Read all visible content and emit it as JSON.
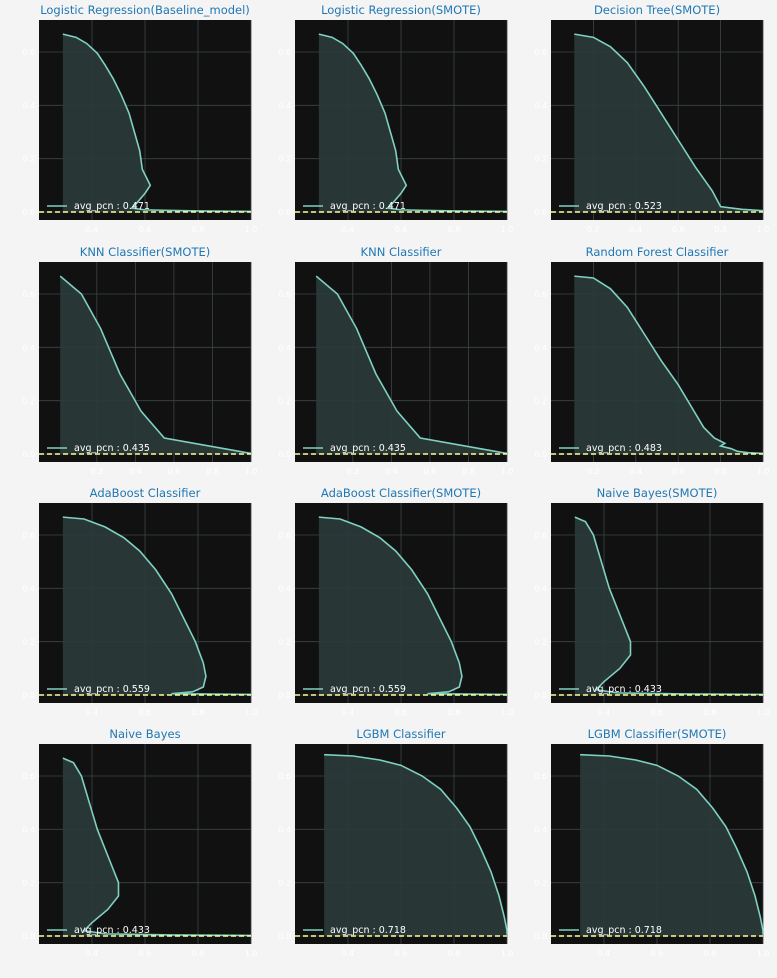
{
  "colors": {
    "page_bg": "#f4f4f4",
    "plot_bg": "#111111",
    "grid": "#3d4444",
    "curve": "#7fd1c1",
    "fill": "#2a3a39",
    "baseline": "#ffff99",
    "title": "#1f77b4",
    "tick": "#ffffff"
  },
  "chart_data": [
    {
      "type": "area",
      "title": "Logistic Regression(Baseline_model)",
      "xlabel": "",
      "ylabel": "",
      "xlim": [
        0.2,
        1.0
      ],
      "ylim": [
        -0.03,
        0.72
      ],
      "xticks": [
        "0.4",
        "0.6",
        "0.8",
        "1.0"
      ],
      "yticks": [
        "0.0",
        "0.2",
        "0.4",
        "0.6"
      ],
      "grid": true,
      "legend_position": "lower-left",
      "legend_label": "avg_pcn : 0.471",
      "baseline": 0.0,
      "curve": [
        [
          0.29,
          0.667
        ],
        [
          0.34,
          0.655
        ],
        [
          0.38,
          0.632
        ],
        [
          0.42,
          0.595
        ],
        [
          0.45,
          0.55
        ],
        [
          0.48,
          0.5
        ],
        [
          0.51,
          0.44
        ],
        [
          0.54,
          0.37
        ],
        [
          0.56,
          0.3
        ],
        [
          0.58,
          0.23
        ],
        [
          0.59,
          0.16
        ],
        [
          0.62,
          0.1
        ],
        [
          0.6,
          0.07
        ],
        [
          0.57,
          0.035
        ],
        [
          0.55,
          0.015
        ],
        [
          0.6,
          0.008
        ],
        [
          0.8,
          0.004
        ],
        [
          1.0,
          0.002
        ]
      ]
    },
    {
      "type": "area",
      "title": "Logistic Regression(SMOTE)",
      "xlabel": "",
      "ylabel": "",
      "xlim": [
        0.2,
        1.0
      ],
      "ylim": [
        -0.03,
        0.72
      ],
      "xticks": [
        "0.4",
        "0.6",
        "0.8",
        "1.0"
      ],
      "yticks": [
        "0.0",
        "0.2",
        "0.4",
        "0.6"
      ],
      "grid": true,
      "legend_position": "lower-left",
      "legend_label": "avg_pcn : 0.471",
      "baseline": 0.0,
      "curve": [
        [
          0.29,
          0.667
        ],
        [
          0.34,
          0.655
        ],
        [
          0.38,
          0.632
        ],
        [
          0.42,
          0.595
        ],
        [
          0.45,
          0.55
        ],
        [
          0.48,
          0.5
        ],
        [
          0.51,
          0.44
        ],
        [
          0.54,
          0.37
        ],
        [
          0.56,
          0.3
        ],
        [
          0.58,
          0.23
        ],
        [
          0.59,
          0.16
        ],
        [
          0.62,
          0.1
        ],
        [
          0.6,
          0.07
        ],
        [
          0.57,
          0.035
        ],
        [
          0.55,
          0.015
        ],
        [
          0.6,
          0.008
        ],
        [
          0.8,
          0.004
        ],
        [
          1.0,
          0.002
        ]
      ]
    },
    {
      "type": "area",
      "title": "Decision Tree(SMOTE)",
      "xlabel": "",
      "ylabel": "",
      "xlim": [
        0.0,
        1.0
      ],
      "ylim": [
        -0.03,
        0.72
      ],
      "xticks": [
        "0.2",
        "0.4",
        "0.6",
        "0.8",
        "1.0"
      ],
      "yticks": [
        "0.0",
        "0.2",
        "0.4",
        "0.6"
      ],
      "grid": true,
      "legend_position": "lower-left",
      "legend_label": "avg_pcn : 0.523",
      "baseline": 0.0,
      "curve": [
        [
          0.11,
          0.667
        ],
        [
          0.2,
          0.655
        ],
        [
          0.28,
          0.62
        ],
        [
          0.36,
          0.56
        ],
        [
          0.44,
          0.47
        ],
        [
          0.52,
          0.37
        ],
        [
          0.6,
          0.27
        ],
        [
          0.68,
          0.17
        ],
        [
          0.76,
          0.08
        ],
        [
          0.8,
          0.02
        ],
        [
          0.9,
          0.01
        ],
        [
          1.0,
          0.005
        ]
      ]
    },
    {
      "type": "area",
      "title": "KNN Classifier(SMOTE)",
      "xlabel": "",
      "ylabel": "",
      "xlim": [
        -0.1,
        1.0
      ],
      "ylim": [
        -0.03,
        0.72
      ],
      "xticks": [
        "0.2",
        "0.4",
        "0.6",
        "0.8",
        "1.0"
      ],
      "yticks": [
        "0.0",
        "0.2",
        "0.4",
        "0.6"
      ],
      "grid": true,
      "legend_position": "lower-left",
      "legend_label": "avg_pcn : 0.435",
      "baseline": 0.0,
      "curve": [
        [
          0.01,
          0.667
        ],
        [
          0.12,
          0.6
        ],
        [
          0.22,
          0.47
        ],
        [
          0.32,
          0.3
        ],
        [
          0.43,
          0.16
        ],
        [
          0.55,
          0.06
        ],
        [
          1.0,
          0.002
        ]
      ]
    },
    {
      "type": "area",
      "title": "KNN Classifier",
      "xlabel": "",
      "ylabel": "",
      "xlim": [
        -0.1,
        1.0
      ],
      "ylim": [
        -0.03,
        0.72
      ],
      "xticks": [
        "0.2",
        "0.4",
        "0.6",
        "0.8",
        "1.0"
      ],
      "yticks": [
        "0.0",
        "0.2",
        "0.4",
        "0.6"
      ],
      "grid": true,
      "legend_position": "lower-left",
      "legend_label": "avg_pcn : 0.435",
      "baseline": 0.0,
      "curve": [
        [
          0.01,
          0.667
        ],
        [
          0.12,
          0.6
        ],
        [
          0.22,
          0.47
        ],
        [
          0.32,
          0.3
        ],
        [
          0.43,
          0.16
        ],
        [
          0.55,
          0.06
        ],
        [
          1.0,
          0.002
        ]
      ]
    },
    {
      "type": "area",
      "title": "Random Forest Classifier",
      "xlabel": "",
      "ylabel": "",
      "xlim": [
        0.0,
        1.0
      ],
      "ylim": [
        -0.03,
        0.72
      ],
      "xticks": [
        "0.2",
        "0.4",
        "0.6",
        "0.8",
        "1.0"
      ],
      "yticks": [
        "0.0",
        "0.2",
        "0.4",
        "0.6"
      ],
      "grid": true,
      "legend_position": "lower-left",
      "legend_label": "avg_pcn : 0.483",
      "baseline": 0.0,
      "curve": [
        [
          0.11,
          0.667
        ],
        [
          0.2,
          0.66
        ],
        [
          0.28,
          0.62
        ],
        [
          0.36,
          0.55
        ],
        [
          0.44,
          0.45
        ],
        [
          0.52,
          0.35
        ],
        [
          0.6,
          0.26
        ],
        [
          0.66,
          0.18
        ],
        [
          0.72,
          0.1
        ],
        [
          0.77,
          0.06
        ],
        [
          0.82,
          0.04
        ],
        [
          0.8,
          0.03
        ],
        [
          0.85,
          0.02
        ],
        [
          0.88,
          0.01
        ],
        [
          0.93,
          0.005
        ],
        [
          1.0,
          0.002
        ]
      ]
    },
    {
      "type": "area",
      "title": "AdaBoost Classifier",
      "xlabel": "",
      "ylabel": "",
      "xlim": [
        0.2,
        1.0
      ],
      "ylim": [
        -0.03,
        0.72
      ],
      "xticks": [
        "0.4",
        "0.6",
        "0.8",
        "1.0"
      ],
      "yticks": [
        "0.0",
        "0.2",
        "0.4",
        "0.6"
      ],
      "grid": true,
      "legend_position": "lower-left",
      "legend_label": "avg_pcn : 0.559",
      "baseline": 0.0,
      "curve": [
        [
          0.29,
          0.667
        ],
        [
          0.37,
          0.66
        ],
        [
          0.45,
          0.63
        ],
        [
          0.52,
          0.59
        ],
        [
          0.58,
          0.54
        ],
        [
          0.64,
          0.47
        ],
        [
          0.7,
          0.38
        ],
        [
          0.75,
          0.28
        ],
        [
          0.79,
          0.2
        ],
        [
          0.82,
          0.12
        ],
        [
          0.83,
          0.07
        ],
        [
          0.82,
          0.03
        ],
        [
          0.78,
          0.012
        ],
        [
          0.7,
          0.005
        ],
        [
          1.0,
          0.002
        ]
      ]
    },
    {
      "type": "area",
      "title": "AdaBoost Classifier(SMOTE)",
      "xlabel": "",
      "ylabel": "",
      "xlim": [
        0.2,
        1.0
      ],
      "ylim": [
        -0.03,
        0.72
      ],
      "xticks": [
        "0.4",
        "0.6",
        "0.8",
        "1.0"
      ],
      "yticks": [
        "0.0",
        "0.2",
        "0.4",
        "0.6"
      ],
      "grid": true,
      "legend_position": "lower-left",
      "legend_label": "avg_pcn : 0.559",
      "baseline": 0.0,
      "curve": [
        [
          0.29,
          0.667
        ],
        [
          0.37,
          0.66
        ],
        [
          0.45,
          0.63
        ],
        [
          0.52,
          0.59
        ],
        [
          0.58,
          0.54
        ],
        [
          0.64,
          0.47
        ],
        [
          0.7,
          0.38
        ],
        [
          0.75,
          0.28
        ],
        [
          0.79,
          0.2
        ],
        [
          0.82,
          0.12
        ],
        [
          0.83,
          0.07
        ],
        [
          0.82,
          0.03
        ],
        [
          0.78,
          0.012
        ],
        [
          0.7,
          0.005
        ],
        [
          1.0,
          0.002
        ]
      ]
    },
    {
      "type": "area",
      "title": "Naive Bayes(SMOTE)",
      "xlabel": "",
      "ylabel": "",
      "xlim": [
        0.2,
        1.0
      ],
      "ylim": [
        -0.03,
        0.72
      ],
      "xticks": [
        "0.4",
        "0.6",
        "0.8",
        "1.0"
      ],
      "yticks": [
        "0.0",
        "0.2",
        "0.4",
        "0.6"
      ],
      "grid": true,
      "legend_position": "lower-left",
      "legend_label": "avg_pcn : 0.433",
      "baseline": 0.0,
      "curve": [
        [
          0.29,
          0.667
        ],
        [
          0.33,
          0.65
        ],
        [
          0.36,
          0.6
        ],
        [
          0.39,
          0.5
        ],
        [
          0.42,
          0.4
        ],
        [
          0.46,
          0.3
        ],
        [
          0.5,
          0.2
        ],
        [
          0.5,
          0.15
        ],
        [
          0.46,
          0.1
        ],
        [
          0.4,
          0.05
        ],
        [
          0.37,
          0.02
        ],
        [
          0.45,
          0.008
        ],
        [
          0.7,
          0.004
        ],
        [
          1.0,
          0.002
        ]
      ]
    },
    {
      "type": "area",
      "title": "Naive Bayes",
      "xlabel": "",
      "ylabel": "",
      "xlim": [
        0.2,
        1.0
      ],
      "ylim": [
        -0.03,
        0.72
      ],
      "xticks": [
        "0.4",
        "0.6",
        "0.8",
        "1.0"
      ],
      "yticks": [
        "0.0",
        "0.2",
        "0.4",
        "0.6"
      ],
      "grid": true,
      "legend_position": "lower-left",
      "legend_label": "avg_pcn : 0.433",
      "baseline": 0.0,
      "curve": [
        [
          0.29,
          0.667
        ],
        [
          0.33,
          0.65
        ],
        [
          0.36,
          0.6
        ],
        [
          0.39,
          0.5
        ],
        [
          0.42,
          0.4
        ],
        [
          0.46,
          0.3
        ],
        [
          0.5,
          0.2
        ],
        [
          0.5,
          0.15
        ],
        [
          0.46,
          0.1
        ],
        [
          0.4,
          0.05
        ],
        [
          0.37,
          0.02
        ],
        [
          0.45,
          0.008
        ],
        [
          0.7,
          0.004
        ],
        [
          1.0,
          0.002
        ]
      ]
    },
    {
      "type": "area",
      "title": "LGBM Classifier",
      "xlabel": "",
      "ylabel": "",
      "xlim": [
        0.2,
        1.0
      ],
      "ylim": [
        -0.03,
        0.72
      ],
      "xticks": [
        "0.4",
        "0.6",
        "0.8",
        "1.0"
      ],
      "yticks": [
        "0.0",
        "0.2",
        "0.4",
        "0.6"
      ],
      "grid": true,
      "legend_position": "lower-left",
      "legend_label": "avg_pcn : 0.718",
      "baseline": 0.0,
      "curve": [
        [
          0.31,
          0.68
        ],
        [
          0.42,
          0.675
        ],
        [
          0.52,
          0.66
        ],
        [
          0.6,
          0.64
        ],
        [
          0.68,
          0.6
        ],
        [
          0.75,
          0.55
        ],
        [
          0.81,
          0.48
        ],
        [
          0.86,
          0.41
        ],
        [
          0.9,
          0.33
        ],
        [
          0.94,
          0.24
        ],
        [
          0.97,
          0.15
        ],
        [
          0.99,
          0.07
        ],
        [
          1.0,
          0.02
        ],
        [
          1.0,
          0.005
        ]
      ]
    },
    {
      "type": "area",
      "title": "LGBM Classifier(SMOTE)",
      "xlabel": "",
      "ylabel": "",
      "xlim": [
        0.2,
        1.0
      ],
      "ylim": [
        -0.03,
        0.72
      ],
      "xticks": [
        "0.4",
        "0.6",
        "0.8",
        "1.0"
      ],
      "yticks": [
        "0.0",
        "0.2",
        "0.4",
        "0.6"
      ],
      "grid": true,
      "legend_position": "lower-left",
      "legend_label": "avg_pcn : 0.718",
      "baseline": 0.0,
      "curve": [
        [
          0.31,
          0.68
        ],
        [
          0.42,
          0.675
        ],
        [
          0.52,
          0.66
        ],
        [
          0.6,
          0.64
        ],
        [
          0.68,
          0.6
        ],
        [
          0.75,
          0.55
        ],
        [
          0.81,
          0.48
        ],
        [
          0.86,
          0.41
        ],
        [
          0.9,
          0.33
        ],
        [
          0.94,
          0.24
        ],
        [
          0.97,
          0.15
        ],
        [
          0.99,
          0.07
        ],
        [
          1.0,
          0.02
        ],
        [
          1.0,
          0.005
        ]
      ]
    }
  ]
}
